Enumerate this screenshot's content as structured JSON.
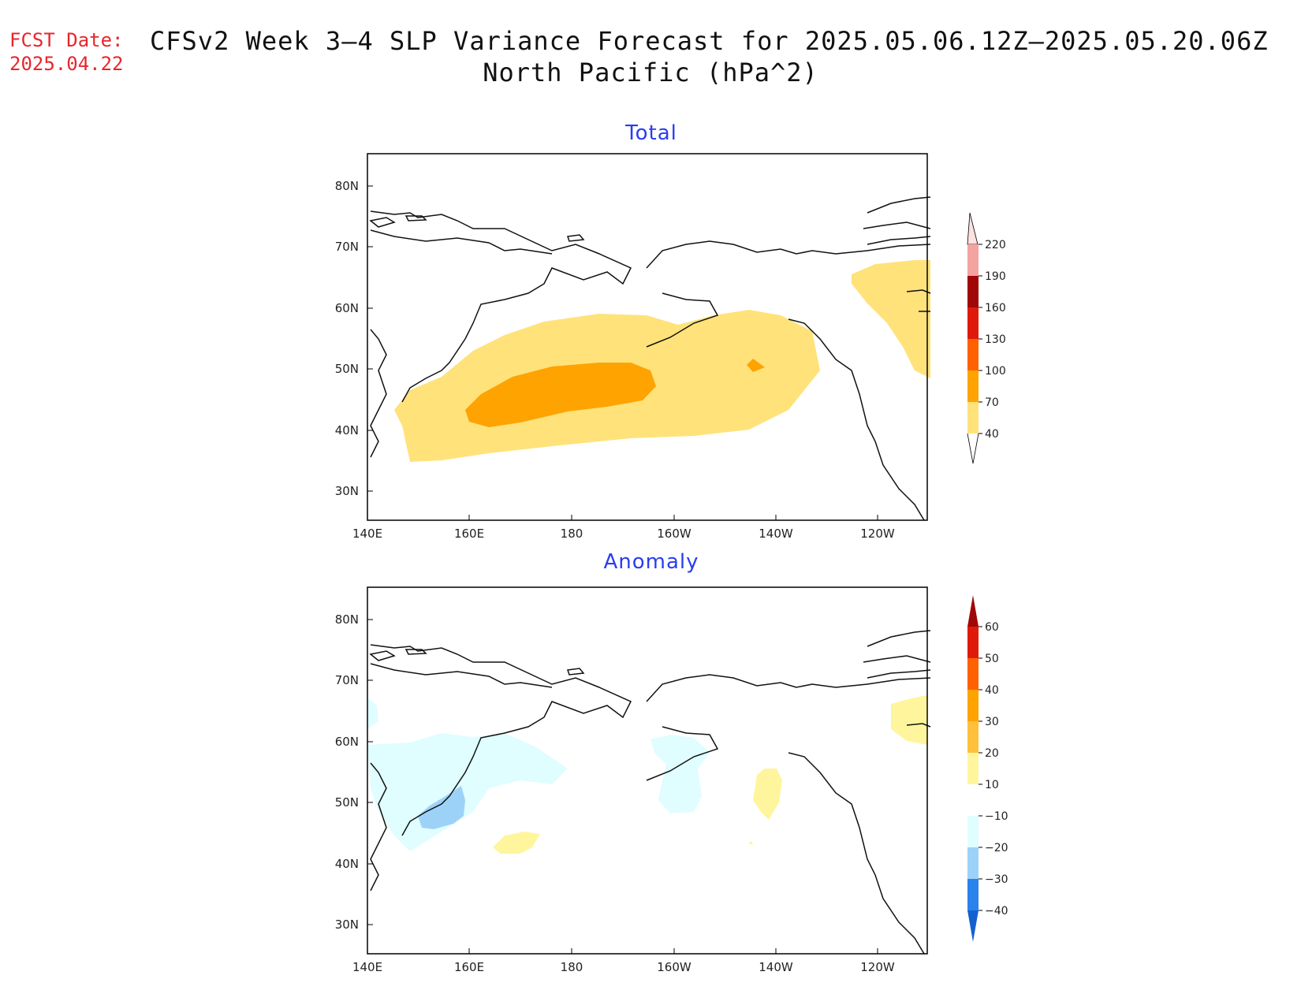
{
  "header": {
    "fcst_label": "FCST Date:",
    "fcst_date": "2025.04.22",
    "title_line1": "CFSv2 Week 3–4 SLP Variance Forecast for 2025.05.06.12Z–2025.05.20.06Z",
    "title_line2": "North Pacific (hPa^2)"
  },
  "panels": {
    "total": {
      "title": "Total",
      "lat_labels": [
        "80N",
        "70N",
        "60N",
        "50N",
        "40N",
        "30N"
      ],
      "lon_labels": [
        "140E",
        "160E",
        "180",
        "160W",
        "140W",
        "120W"
      ],
      "colorbar": {
        "labels": [
          "220",
          "190",
          "160",
          "130",
          "100",
          "70",
          "40"
        ],
        "colors": [
          "#fde2e0",
          "#f3a3a0",
          "#a00707",
          "#e01a0a",
          "#ff6100",
          "#ffa300",
          "#ffe27a"
        ]
      }
    },
    "anomaly": {
      "title": "Anomaly",
      "lat_labels": [
        "80N",
        "70N",
        "60N",
        "50N",
        "40N",
        "30N"
      ],
      "lon_labels": [
        "140E",
        "160E",
        "180",
        "160W",
        "140W",
        "120W"
      ],
      "colorbar": {
        "labels": [
          "60",
          "50",
          "40",
          "30",
          "20",
          "10",
          "−10",
          "−20",
          "−30",
          "−40"
        ],
        "colors": [
          "#a00707",
          "#e01a0a",
          "#ff6100",
          "#ffa300",
          "#ffc03c",
          "#fff59c",
          "#ffffff",
          "#e0fdff",
          "#9dd2f8",
          "#2a82ed",
          "#1560d0"
        ]
      }
    }
  },
  "colors": {
    "header_red": "#e8262b",
    "panel_title_blue": "#2a3df0"
  }
}
